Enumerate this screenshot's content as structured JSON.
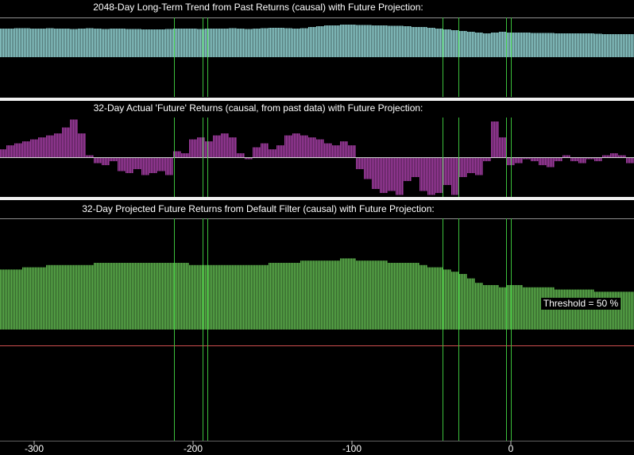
{
  "chart_data": [
    {
      "type": "bar",
      "title": "2048-Day Long-Term Trend from Past Returns (causal) with Future Projection:",
      "color": "#8fd0d0",
      "ylim": [
        -1,
        1
      ],
      "baseline": 0,
      "xlim": [
        -321.5,
        77.5
      ],
      "vlines": [
        -212,
        -194,
        -191,
        -43,
        -33,
        -3,
        0
      ],
      "vline_color": "#3cc03c",
      "x": [
        -320,
        -315,
        -310,
        -305,
        -300,
        -295,
        -290,
        -285,
        -280,
        -275,
        -270,
        -265,
        -260,
        -255,
        -250,
        -245,
        -240,
        -235,
        -230,
        -225,
        -220,
        -215,
        -210,
        -205,
        -200,
        -195,
        -190,
        -185,
        -180,
        -175,
        -170,
        -165,
        -160,
        -155,
        -150,
        -145,
        -140,
        -135,
        -130,
        -125,
        -120,
        -115,
        -110,
        -105,
        -100,
        -95,
        -90,
        -85,
        -80,
        -75,
        -70,
        -65,
        -60,
        -55,
        -50,
        -45,
        -40,
        -35,
        -30,
        -25,
        -20,
        -15,
        -10,
        -5,
        0,
        5,
        10,
        15,
        20,
        25,
        30,
        35,
        40,
        45,
        50,
        55,
        60,
        65,
        70,
        75
      ],
      "values": [
        0.72,
        0.72,
        0.73,
        0.73,
        0.72,
        0.72,
        0.73,
        0.72,
        0.72,
        0.71,
        0.72,
        0.73,
        0.72,
        0.71,
        0.72,
        0.72,
        0.71,
        0.71,
        0.7,
        0.7,
        0.7,
        0.71,
        0.72,
        0.72,
        0.72,
        0.71,
        0.72,
        0.72,
        0.72,
        0.73,
        0.72,
        0.71,
        0.72,
        0.73,
        0.74,
        0.74,
        0.73,
        0.72,
        0.73,
        0.76,
        0.78,
        0.8,
        0.8,
        0.82,
        0.82,
        0.81,
        0.81,
        0.8,
        0.8,
        0.79,
        0.79,
        0.78,
        0.76,
        0.76,
        0.74,
        0.72,
        0.7,
        0.68,
        0.66,
        0.64,
        0.62,
        0.6,
        0.62,
        0.64,
        0.62,
        0.62,
        0.62,
        0.61,
        0.61,
        0.61,
        0.6,
        0.6,
        0.6,
        0.6,
        0.6,
        0.59,
        0.58,
        0.58,
        0.58,
        0.58
      ]
    },
    {
      "type": "bar",
      "title": "32-Day Actual 'Future' Returns (causal, from past data) with Future Projection:",
      "color": "#a03ca0",
      "ylim": [
        -1,
        1
      ],
      "baseline": 0,
      "xlim": [
        -321.5,
        77.5
      ],
      "hlines": [
        0
      ],
      "hline_color": "#d0d0d0",
      "vlines": [
        -212,
        -194,
        -191,
        -43,
        -33,
        -3,
        0
      ],
      "vline_color": "#3cc03c",
      "x": [
        -320,
        -315,
        -310,
        -305,
        -300,
        -295,
        -290,
        -285,
        -280,
        -275,
        -270,
        -265,
        -260,
        -255,
        -250,
        -245,
        -240,
        -235,
        -230,
        -225,
        -220,
        -215,
        -210,
        -205,
        -200,
        -195,
        -190,
        -185,
        -180,
        -175,
        -170,
        -165,
        -160,
        -155,
        -150,
        -145,
        -140,
        -135,
        -130,
        -125,
        -120,
        -115,
        -110,
        -105,
        -100,
        -95,
        -90,
        -85,
        -80,
        -75,
        -70,
        -65,
        -60,
        -55,
        -50,
        -45,
        -40,
        -35,
        -30,
        -25,
        -20,
        -15,
        -10,
        -5,
        0,
        5,
        10,
        15,
        20,
        25,
        30,
        35,
        40,
        45,
        50,
        55,
        60,
        65,
        70,
        75
      ],
      "values": [
        0.2,
        0.3,
        0.35,
        0.4,
        0.45,
        0.5,
        0.55,
        0.6,
        0.75,
        0.95,
        0.6,
        0.05,
        -0.15,
        -0.2,
        -0.1,
        -0.35,
        -0.4,
        -0.3,
        -0.45,
        -0.4,
        -0.35,
        -0.45,
        0.15,
        0.1,
        0.45,
        0.5,
        0.4,
        0.55,
        0.6,
        0.5,
        0.1,
        -0.05,
        0.25,
        0.35,
        0.2,
        0.3,
        0.55,
        0.6,
        0.55,
        0.5,
        0.45,
        0.35,
        0.3,
        0.4,
        0.3,
        -0.3,
        -0.55,
        -0.8,
        -0.9,
        -0.85,
        -0.95,
        -0.6,
        -0.5,
        -0.85,
        -0.95,
        -0.9,
        -0.7,
        -0.95,
        -0.5,
        -0.4,
        -0.45,
        -0.1,
        0.9,
        0.5,
        -0.2,
        -0.15,
        -0.05,
        -0.1,
        -0.2,
        -0.25,
        -0.1,
        0.05,
        -0.1,
        -0.15,
        -0.05,
        -0.1,
        0.05,
        0.1,
        0.05,
        -0.15
      ]
    },
    {
      "type": "bar",
      "title": "32-Day Projected Future Returns from Default Filter (causal) with Future Projection:",
      "color": "#5cb04c",
      "ylim": [
        0,
        100
      ],
      "baseline": 50,
      "xlim": [
        -321.5,
        77.5
      ],
      "xticks": [
        -300,
        -200,
        -100,
        0
      ],
      "hlines": [
        43
      ],
      "hline_color": "#d05050",
      "annotation": "Threshold = 50 %",
      "vlines": [
        -212,
        -194,
        -191,
        -43,
        -33,
        -3,
        0
      ],
      "vline_color": "#3cc03c",
      "x": [
        -320,
        -315,
        -310,
        -305,
        -300,
        -295,
        -290,
        -285,
        -280,
        -275,
        -270,
        -265,
        -260,
        -255,
        -250,
        -245,
        -240,
        -235,
        -230,
        -225,
        -220,
        -215,
        -210,
        -205,
        -200,
        -195,
        -190,
        -185,
        -180,
        -175,
        -170,
        -165,
        -160,
        -155,
        -150,
        -145,
        -140,
        -135,
        -130,
        -125,
        -120,
        -115,
        -110,
        -105,
        -100,
        -95,
        -90,
        -85,
        -80,
        -75,
        -70,
        -65,
        -60,
        -55,
        -50,
        -45,
        -40,
        -35,
        -30,
        -25,
        -20,
        -15,
        -10,
        -5,
        0,
        5,
        10,
        15,
        20,
        25,
        30,
        35,
        40,
        45,
        50,
        55,
        60,
        65,
        70,
        75
      ],
      "values": [
        77,
        77,
        77,
        78,
        78,
        78,
        79,
        79,
        79,
        79,
        79,
        79,
        80,
        80,
        80,
        80,
        80,
        80,
        80,
        80,
        80,
        80,
        80,
        80,
        79,
        79,
        79,
        79,
        79,
        79,
        79,
        79,
        79,
        79,
        80,
        80,
        80,
        80,
        81,
        81,
        81,
        81,
        81,
        82,
        82,
        81,
        81,
        81,
        81,
        80,
        80,
        80,
        80,
        79,
        78,
        78,
        77,
        76,
        75,
        73,
        71,
        70,
        70,
        69,
        70,
        70,
        69,
        69,
        69,
        69,
        68,
        68,
        68,
        68,
        68,
        67,
        67,
        67,
        67,
        67
      ]
    }
  ]
}
